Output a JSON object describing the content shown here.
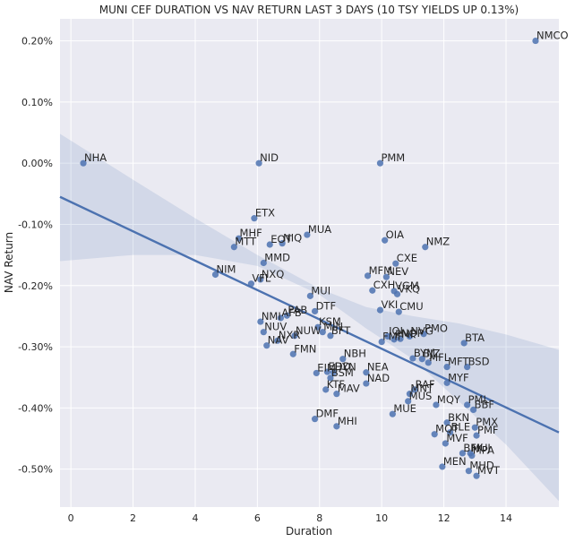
{
  "chart_data": {
    "type": "scatter",
    "title": "MUNI CEF DURATION VS NAV RETURN LAST 3 DAYS (10 TSY YIELDS UP 0.13%)",
    "xlabel": "Duration",
    "ylabel": "NAV Return",
    "xlim": [
      -0.35,
      15.7
    ],
    "ylim": [
      -0.562,
      0.236
    ],
    "x_ticks": [
      0,
      2,
      4,
      6,
      8,
      10,
      12,
      14
    ],
    "y_ticks": [
      0.2,
      0.1,
      0.0,
      -0.1,
      -0.2,
      -0.3,
      -0.4,
      -0.5
    ],
    "y_tick_labels": [
      "0.20%",
      "0.10%",
      "0.00%",
      "-0.10%",
      "-0.20%",
      "-0.30%",
      "-0.40%",
      "-0.50%"
    ],
    "grid": true,
    "background": "#eaeaf2",
    "grid_color": "#ffffff",
    "point_color": "#4c72b0",
    "line_color": "#4c72b0",
    "band_color": "#4c72b0",
    "regression": {
      "x": [
        -0.35,
        15.7
      ],
      "y": [
        -0.055,
        -0.44
      ]
    },
    "confidence_band": {
      "x": [
        -0.35,
        2,
        4,
        6,
        8,
        9.5,
        11,
        12.5,
        14,
        15.7
      ],
      "upper": [
        0.048,
        -0.027,
        -0.09,
        -0.15,
        -0.205,
        -0.235,
        -0.25,
        -0.262,
        -0.28,
        -0.305
      ],
      "lower": [
        -0.16,
        -0.15,
        -0.15,
        -0.168,
        -0.215,
        -0.27,
        -0.32,
        -0.39,
        -0.46,
        -0.552
      ]
    },
    "points": [
      {
        "label": "NMCO",
        "x": 14.95,
        "y": 0.2
      },
      {
        "label": "NHA",
        "x": 0.4,
        "y": 0.0
      },
      {
        "label": "NID",
        "x": 6.05,
        "y": 0.0
      },
      {
        "label": "PMM",
        "x": 9.95,
        "y": 0.0
      },
      {
        "label": "ETX",
        "x": 5.9,
        "y": -0.09
      },
      {
        "label": "MUA",
        "x": 7.6,
        "y": -0.117
      },
      {
        "label": "MHF",
        "x": 5.4,
        "y": -0.123
      },
      {
        "label": "OIA",
        "x": 10.1,
        "y": -0.126
      },
      {
        "label": "EOT",
        "x": 6.4,
        "y": -0.133
      },
      {
        "label": "NIQ",
        "x": 6.8,
        "y": -0.131
      },
      {
        "label": "NMZ",
        "x": 11.4,
        "y": -0.137
      },
      {
        "label": "MTT",
        "x": 5.25,
        "y": -0.137
      },
      {
        "label": "MMD",
        "x": 6.2,
        "y": -0.163
      },
      {
        "label": "CXE",
        "x": 10.45,
        "y": -0.164
      },
      {
        "label": "NIM",
        "x": 4.65,
        "y": -0.182
      },
      {
        "label": "NXQ",
        "x": 6.1,
        "y": -0.19
      },
      {
        "label": "MFM",
        "x": 9.55,
        "y": -0.184
      },
      {
        "label": "NEV",
        "x": 10.15,
        "y": -0.186
      },
      {
        "label": "VFL",
        "x": 5.8,
        "y": -0.197
      },
      {
        "label": "VGM",
        "x": 10.4,
        "y": -0.209
      },
      {
        "label": "CXH",
        "x": 9.7,
        "y": -0.208
      },
      {
        "label": "VKQ",
        "x": 10.5,
        "y": -0.214
      },
      {
        "label": "MUI",
        "x": 7.7,
        "y": -0.217
      },
      {
        "label": "VKI",
        "x": 9.95,
        "y": -0.24
      },
      {
        "label": "CMU",
        "x": 10.55,
        "y": -0.243
      },
      {
        "label": "DTF",
        "x": 7.85,
        "y": -0.242
      },
      {
        "label": "PAB",
        "x": 6.95,
        "y": -0.249
      },
      {
        "label": "AFB",
        "x": 6.75,
        "y": -0.253
      },
      {
        "label": "NMI",
        "x": 6.1,
        "y": -0.259
      },
      {
        "label": "KSM",
        "x": 7.95,
        "y": -0.268
      },
      {
        "label": "NUV",
        "x": 6.2,
        "y": -0.276
      },
      {
        "label": "MIN",
        "x": 8.1,
        "y": -0.276
      },
      {
        "label": "BFT",
        "x": 8.35,
        "y": -0.282
      },
      {
        "label": "NUW",
        "x": 7.2,
        "y": -0.282
      },
      {
        "label": "PMO",
        "x": 11.35,
        "y": -0.279
      },
      {
        "label": "NVG",
        "x": 10.9,
        "y": -0.283
      },
      {
        "label": "IQI",
        "x": 10.2,
        "y": -0.283
      },
      {
        "label": "NQP",
        "x": 10.6,
        "y": -0.287
      },
      {
        "label": "PMF",
        "x": 10.4,
        "y": -0.288
      },
      {
        "label": "NXR",
        "x": 6.65,
        "y": -0.29
      },
      {
        "label": "FMF",
        "x": 10.0,
        "y": -0.292
      },
      {
        "label": "BTA",
        "x": 12.65,
        "y": -0.294
      },
      {
        "label": "NAV",
        "x": 6.3,
        "y": -0.298
      },
      {
        "label": "FMN",
        "x": 7.15,
        "y": -0.312
      },
      {
        "label": "NBH",
        "x": 8.75,
        "y": -0.32
      },
      {
        "label": "BYM",
        "x": 11.0,
        "y": -0.319
      },
      {
        "label": "BJZ",
        "x": 11.3,
        "y": -0.32
      },
      {
        "label": "MFL",
        "x": 11.5,
        "y": -0.326
      },
      {
        "label": "MFT",
        "x": 12.1,
        "y": -0.333
      },
      {
        "label": "BSD",
        "x": 12.75,
        "y": -0.333
      },
      {
        "label": "EIM",
        "x": 7.9,
        "y": -0.343
      },
      {
        "label": "EDD",
        "x": 8.25,
        "y": -0.341
      },
      {
        "label": "HYN",
        "x": 8.45,
        "y": -0.342
      },
      {
        "label": "NEA",
        "x": 9.5,
        "y": -0.342
      },
      {
        "label": "BSM",
        "x": 8.35,
        "y": -0.351
      },
      {
        "label": "MYF",
        "x": 12.1,
        "y": -0.359
      },
      {
        "label": "NAD",
        "x": 9.5,
        "y": -0.36
      },
      {
        "label": "KTF",
        "x": 8.2,
        "y": -0.37
      },
      {
        "label": "RAF",
        "x": 11.05,
        "y": -0.37
      },
      {
        "label": "MNT",
        "x": 10.9,
        "y": -0.377
      },
      {
        "label": "MAV",
        "x": 8.55,
        "y": -0.377
      },
      {
        "label": "MUS",
        "x": 10.85,
        "y": -0.389
      },
      {
        "label": "MQY",
        "x": 11.75,
        "y": -0.395
      },
      {
        "label": "PML",
        "x": 12.75,
        "y": -0.395
      },
      {
        "label": "BBF",
        "x": 12.95,
        "y": -0.403
      },
      {
        "label": "MUE",
        "x": 10.35,
        "y": -0.41
      },
      {
        "label": "DMF",
        "x": 7.85,
        "y": -0.418
      },
      {
        "label": "MHI",
        "x": 8.55,
        "y": -0.43
      },
      {
        "label": "BKN",
        "x": 12.1,
        "y": -0.424
      },
      {
        "label": "PMX",
        "x": 13.0,
        "y": -0.432
      },
      {
        "label": "BLE",
        "x": 12.2,
        "y": -0.44
      },
      {
        "label": "MQT",
        "x": 11.7,
        "y": -0.443
      },
      {
        "label": "PMF",
        "x": 13.05,
        "y": -0.445
      },
      {
        "label": "MVF",
        "x": 12.05,
        "y": -0.458
      },
      {
        "label": "BFK",
        "x": 12.6,
        "y": -0.474
      },
      {
        "label": "MUJ",
        "x": 12.85,
        "y": -0.474
      },
      {
        "label": "MPA",
        "x": 12.9,
        "y": -0.478
      },
      {
        "label": "MEN",
        "x": 11.95,
        "y": -0.496
      },
      {
        "label": "MHD",
        "x": 12.8,
        "y": -0.503
      },
      {
        "label": "MVT",
        "x": 13.05,
        "y": -0.511
      }
    ]
  }
}
